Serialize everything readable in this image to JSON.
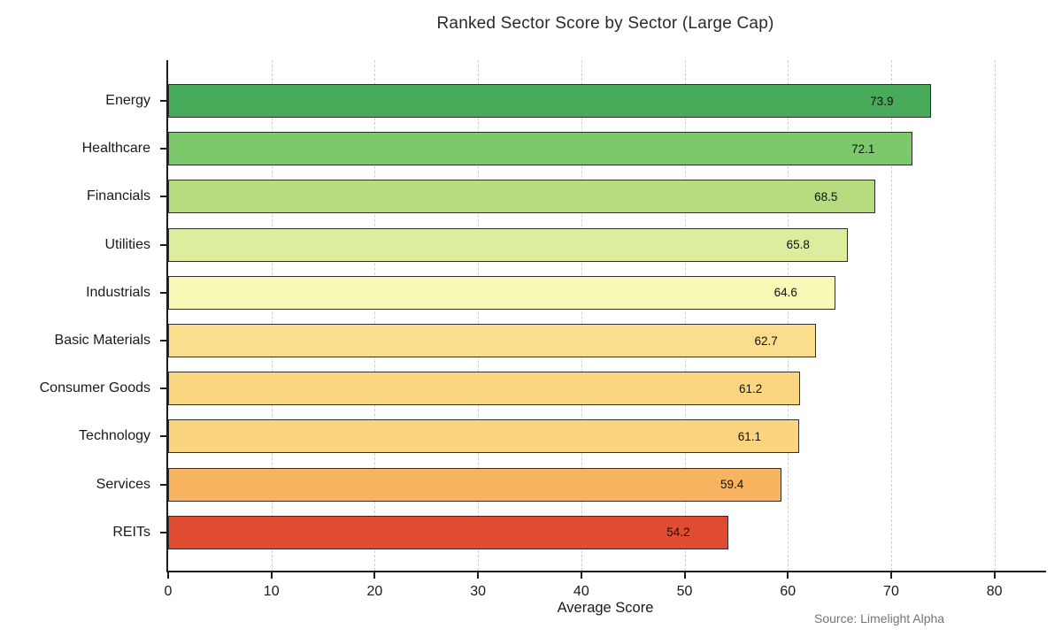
{
  "header": {
    "title": "Ranked Sector Score by Sector (Large Cap)"
  },
  "footer": {
    "source_note": "Source: Limelight Alpha"
  },
  "chart_data": {
    "type": "bar",
    "orientation": "horizontal",
    "title": "Ranked Sector Score by Sector (Large Cap)",
    "xlabel": "Average Score",
    "ylabel": "",
    "xlim": [
      0,
      85
    ],
    "xticks": [
      0,
      10,
      20,
      30,
      40,
      50,
      60,
      70,
      80
    ],
    "grid": "vertical-dashed",
    "legend": "none",
    "categories": [
      "Energy",
      "Healthcare",
      "Financials",
      "Utilities",
      "Industrials",
      "Basic Materials",
      "Consumer Goods",
      "Technology",
      "Services",
      "REITs"
    ],
    "values": [
      73.9,
      72.1,
      68.5,
      65.8,
      64.6,
      62.7,
      61.2,
      61.1,
      59.4,
      54.2
    ],
    "value_labels": [
      "73.9",
      "72.1",
      "68.5",
      "65.8",
      "64.6",
      "62.7",
      "61.2",
      "61.1",
      "59.4",
      "54.2"
    ],
    "bar_colors": [
      "#47ab5a",
      "#7cc96c",
      "#b7dc7f",
      "#dcee9d",
      "#f7fab7",
      "#fade8e",
      "#fbd680",
      "#fad47e",
      "#f8b360",
      "#e04c31"
    ],
    "bar_edge_color": "#2e2e2e",
    "gridline_color": "#cfcfcf",
    "annotation": "Source: Limelight Alpha"
  }
}
